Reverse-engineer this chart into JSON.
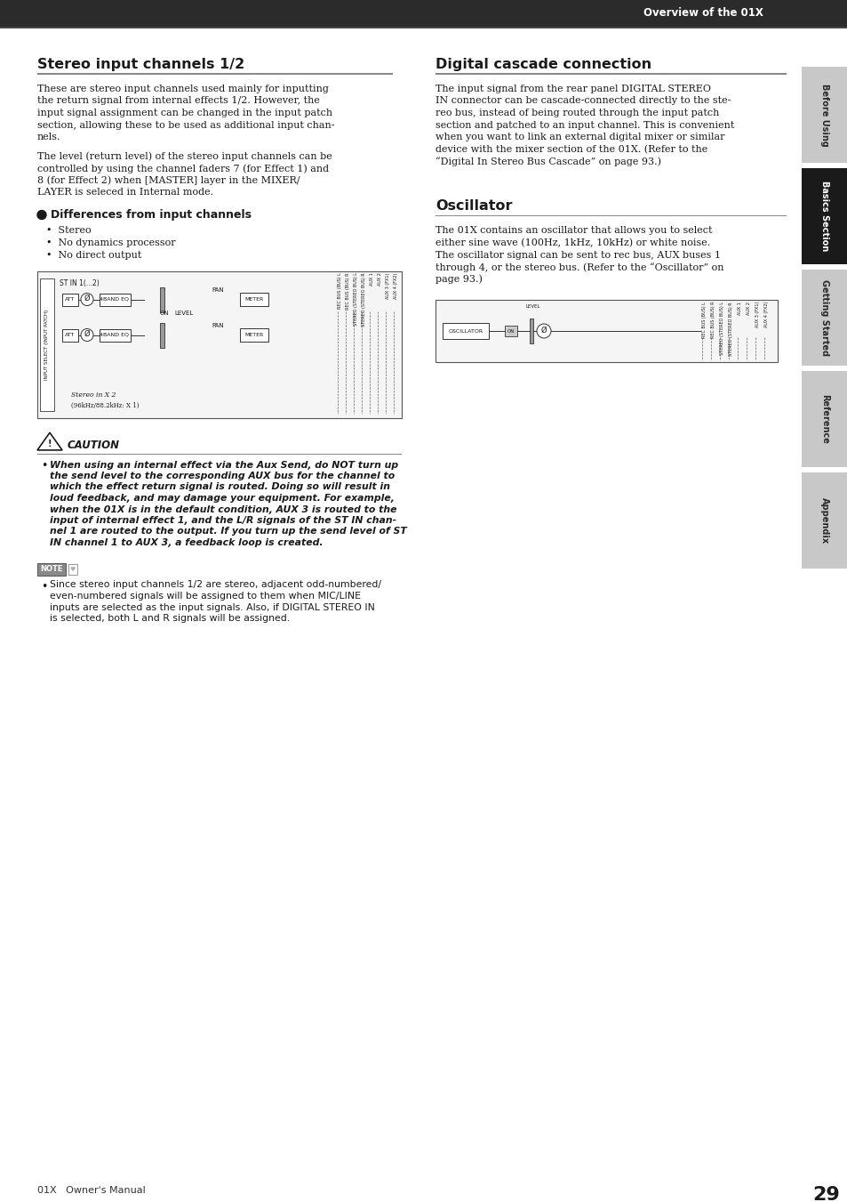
{
  "page_bg": "#ffffff",
  "header_bar_color": "#2b2b2b",
  "header_text": "Overview of the 01X",
  "left_section_title": "Stereo input channels 1/2",
  "left_para1": "These are stereo input channels used mainly for inputting\nthe return signal from internal effects 1/2. However, the\ninput signal assignment can be changed in the input patch\nsection, allowing these to be used as additional input chan-\nnels.",
  "left_para2": "The level (return level) of the stereo input channels can be\ncontrolled by using the channel faders 7 (for Effect 1) and\n8 (for Effect 2) when [MASTER] layer in the MIXER/\nLAYER is seleced in Internal mode.",
  "bullet_title": "Differences from input channels",
  "bullets": [
    "Stereo",
    "No dynamics processor",
    "No direct output"
  ],
  "right_section_title": "Digital cascade connection",
  "right_para1": "The input signal from the rear panel DIGITAL STEREO\nIN connector can be cascade-connected directly to the ste-\nreo bus, instead of being routed through the input patch\nsection and patched to an input channel. This is convenient\nwhen you want to link an external digital mixer or similar\ndevice with the mixer section of the 01X. (Refer to the\n“Digital In Stereo Bus Cascade” on page 93.)",
  "oscillator_title": "Oscillator",
  "oscillator_para": "The 01X contains an oscillator that allows you to select\neither sine wave (100Hz, 1kHz, 10kHz) or white noise.\nThe oscillator signal can be sent to rec bus, AUX buses 1\nthrough 4, or the stereo bus. (Refer to the “Oscillator” on\npage 93.)",
  "caution_title": "CAUTION",
  "caution_text_lines": [
    "When using an internal effect via the Aux Send, do NOT turn up",
    "the send level to the corresponding AUX bus for the channel to",
    "which the effect return signal is routed. Doing so will result in",
    "loud feedback, and may damage your equipment. For example,",
    "when the 01X is in the default condition, AUX 3 is routed to the",
    "input of internal effect 1, and the L/R signals of the ST IN chan-",
    "nel 1 are routed to the output. If you turn up the send level of ST",
    "IN channel 1 to AUX 3, a feedback loop is created."
  ],
  "note_text_lines": [
    "Since stereo input channels 1/2 are stereo, adjacent odd-numbered/",
    "even-numbered signals will be assigned to them when MIC/LINE",
    "inputs are selected as the input signals. Also, if DIGITAL STEREO IN",
    "is selected, both L and R signals will be assigned."
  ],
  "sidebar_labels": [
    "Before Using",
    "Basics Section",
    "Getting Started",
    "Reference",
    "Appendix"
  ],
  "sidebar_active_idx": 1,
  "sidebar_colors": [
    "#c8c8c8",
    "#1a1a1a",
    "#c8c8c8",
    "#c8c8c8",
    "#c8c8c8"
  ],
  "sidebar_text_colors": [
    "#2a2a2a",
    "#ffffff",
    "#2a2a2a",
    "#2a2a2a",
    "#2a2a2a"
  ],
  "page_number": "29",
  "footer_text": "01X   Owner's Manual",
  "sep_line_color": "#888888",
  "text_color": "#1a1a1a",
  "body_font_size": 8.0,
  "title_font_size": 11.5
}
